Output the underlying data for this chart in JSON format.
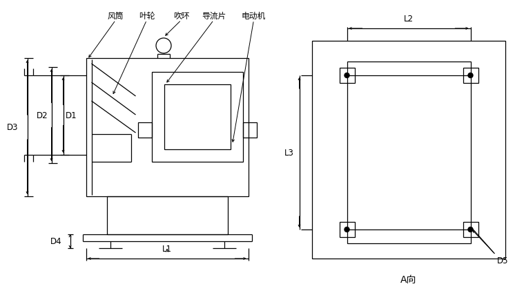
{
  "bg_color": "#ffffff",
  "line_color": "#000000",
  "labels": {
    "fengton": "风筒",
    "yelun": "叶轮",
    "diaohuang": "吹环",
    "daoliu": "导流片",
    "diandongji": "电动机",
    "D1": "D1",
    "D2": "D2",
    "D3": "D3",
    "D4": "D4",
    "L1": "L1",
    "L2": "L2",
    "L3": "L3",
    "D5": "D5",
    "Axiang": "A向"
  },
  "font_size": 8.5
}
